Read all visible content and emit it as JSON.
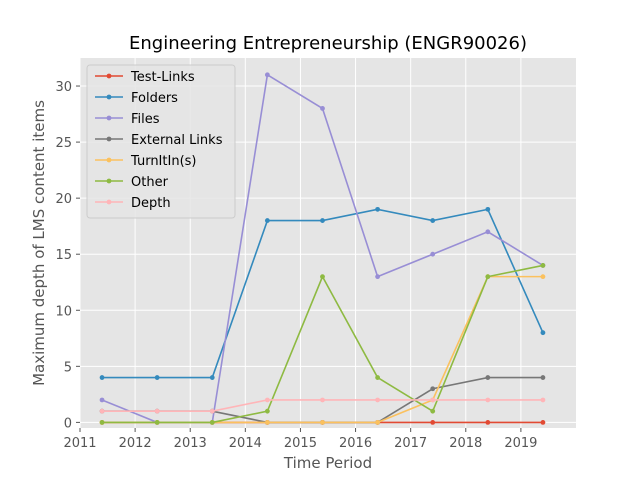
{
  "chart_data": {
    "type": "line",
    "title": "Engineering Entrepreneurship (ENGR90026)",
    "xlabel": "Time Period",
    "ylabel": "Maximum depth of LMS content items",
    "xlim": [
      2011,
      2020
    ],
    "ylim": [
      -0.5,
      32.5
    ],
    "xticks": [
      2011,
      2012,
      2013,
      2014,
      2015,
      2016,
      2017,
      2018,
      2019
    ],
    "yticks": [
      0,
      5,
      10,
      15,
      20,
      25,
      30
    ],
    "grid": true,
    "legend_position": "top-left",
    "x": [
      2011.4,
      2012.4,
      2013.4,
      2014.4,
      2015.4,
      2016.4,
      2017.4,
      2018.4,
      2019.4
    ],
    "series": [
      {
        "name": "Test-Links",
        "color": "#E24A33",
        "values": [
          0,
          0,
          0,
          0,
          0,
          0,
          0,
          0,
          0
        ]
      },
      {
        "name": "Folders",
        "color": "#348ABD",
        "values": [
          4,
          4,
          4,
          18,
          18,
          19,
          18,
          19,
          8
        ]
      },
      {
        "name": "Files",
        "color": "#988ED5",
        "values": [
          2,
          0,
          0,
          31,
          28,
          13,
          15,
          17,
          14
        ]
      },
      {
        "name": "External Links",
        "color": "#777777",
        "values": [
          1,
          1,
          1,
          0,
          0,
          0,
          3,
          4,
          4
        ]
      },
      {
        "name": "TurnItIn(s)",
        "color": "#FBC15E",
        "values": [
          0,
          0,
          0,
          0,
          0,
          0,
          2,
          13,
          13
        ]
      },
      {
        "name": "Other",
        "color": "#8EBA42",
        "values": [
          0,
          0,
          0,
          1,
          13,
          4,
          1,
          13,
          14
        ]
      },
      {
        "name": "Depth",
        "color": "#FFB5B8",
        "values": [
          1,
          1,
          1,
          2,
          2,
          2,
          2,
          2,
          2
        ]
      }
    ]
  }
}
